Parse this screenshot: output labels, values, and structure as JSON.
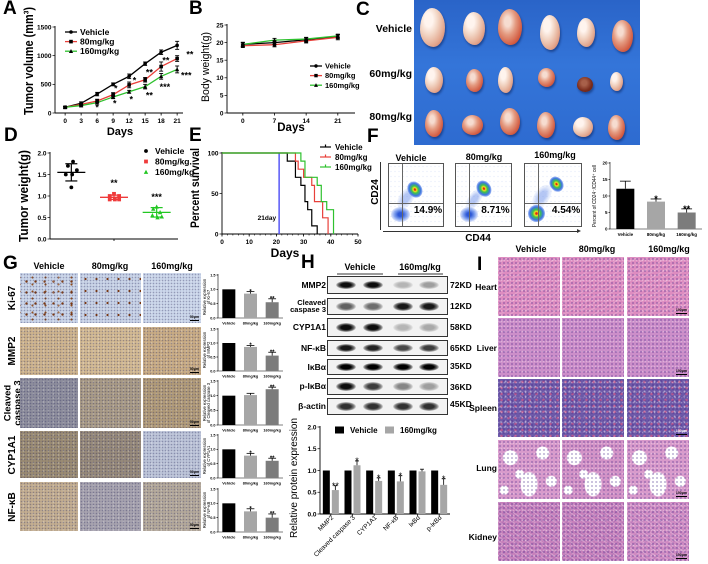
{
  "panel_labels": {
    "A": "A",
    "B": "B",
    "C": "C",
    "D": "D",
    "E": "E",
    "F": "F",
    "G": "G",
    "H": "H",
    "I": "I"
  },
  "colors": {
    "vehicle": "#000000",
    "dose_80": "#e8403a",
    "dose_160": "#2fc12f",
    "bar_80": "#a6a6a6",
    "bar_160": "#7c7c7c",
    "cutoff_line": "#4b4bf5",
    "photo_background": "#2f6fd6"
  },
  "panel_c": {
    "row_labels": [
      "Vehicle",
      "60mg/kg",
      "80mg/kg"
    ]
  },
  "panel_f": {
    "plots": [
      {
        "header": "Vehicle",
        "percent": "14.9%"
      },
      {
        "header": "80mg/kg",
        "percent": "8.71%"
      },
      {
        "header": "160mg/kg",
        "percent": "4.54%"
      }
    ],
    "y_axis": "CD24",
    "x_axis": "CD44"
  },
  "panel_g": {
    "columns": [
      "Vehicle",
      "80mg/kg",
      "160mg/kg"
    ],
    "rows": [
      "Ki-67",
      "MMP2",
      "Cleaved\ncaspase 3",
      "CYP1A1",
      "NF-κB"
    ],
    "scale_bar": "50μm"
  },
  "panel_h": {
    "columns": [
      "Vehicle",
      "160mg/kg"
    ],
    "blots": [
      {
        "label": "MMP2",
        "size": "72KD",
        "bands": [
          0.95,
          0.95,
          0.25,
          0.35
        ]
      },
      {
        "label": "Cleaved\ncaspase 3",
        "size": "12KD",
        "bands": [
          0.6,
          0.55,
          0.9,
          0.9
        ]
      },
      {
        "label": "CYP1A1",
        "size": "58KD",
        "bands": [
          0.95,
          0.95,
          0.25,
          0.3
        ]
      },
      {
        "label": "NF-κB",
        "size": "65KD",
        "bands": [
          0.9,
          0.85,
          0.7,
          0.75
        ]
      },
      {
        "label": "IκBα",
        "size": "35KD",
        "bands": [
          1.0,
          1.0,
          1.0,
          1.0
        ]
      },
      {
        "label": "p-IκBα",
        "size": "36KD",
        "bands": [
          0.95,
          0.75,
          0.45,
          0.35
        ]
      },
      {
        "label": "β-actin",
        "size": "45KD",
        "bands": [
          0.8,
          0.8,
          0.8,
          0.8
        ]
      }
    ]
  },
  "panel_i": {
    "columns": [
      "Vehicle",
      "80mg/kg",
      "160mg/kg"
    ],
    "rows": [
      "Heart",
      "Liver",
      "Spleen",
      "Lung",
      "Kidney"
    ],
    "scale_bar": "100μm"
  },
  "chart_data": [
    {
      "id": "A",
      "type": "line",
      "title": "",
      "xlabel": "Days",
      "ylabel": "Tumor volume (mm³)",
      "x": [
        0,
        3,
        6,
        9,
        12,
        15,
        18,
        21
      ],
      "xticks": [
        0,
        3,
        6,
        9,
        12,
        15,
        18,
        21
      ],
      "xlim": [
        -1.9,
        22.1
      ],
      "ylim": [
        0,
        1500
      ],
      "yticks": [
        0,
        500,
        1000,
        1500
      ],
      "ytick_labels": [
        "0",
        "500",
        "1000",
        "1500"
      ],
      "grid": false,
      "legend_position": "upper left",
      "series": [
        {
          "name": "Vehicle",
          "color": "#000000",
          "marker": "circle",
          "values": [
            100,
            170,
            330,
            500,
            640,
            860,
            1060,
            1180
          ],
          "errors": [
            15,
            25,
            30,
            25,
            40,
            30,
            40,
            70
          ]
        },
        {
          "name": "80mg/kg",
          "color": "#e8403a",
          "marker": "square",
          "values": [
            100,
            150,
            210,
            320,
            490,
            580,
            810,
            950
          ],
          "errors": [
            15,
            20,
            30,
            35,
            50,
            40,
            80,
            50
          ]
        },
        {
          "name": "160mg/kg",
          "color": "#2fc12f",
          "marker": "triangle",
          "values": [
            100,
            130,
            180,
            280,
            370,
            460,
            640,
            760
          ],
          "errors": [
            15,
            20,
            25,
            30,
            25,
            40,
            50,
            60
          ]
        }
      ],
      "annotations": [
        {
          "x": 6,
          "y": 95,
          "text": "*"
        },
        {
          "x": 9.5,
          "y": 430,
          "text": "*"
        },
        {
          "x": 9.3,
          "y": 165,
          "text": "*"
        },
        {
          "x": 13,
          "y": 565,
          "text": "*"
        },
        {
          "x": 12.4,
          "y": 235,
          "text": "*"
        },
        {
          "x": 15.8,
          "y": 710,
          "text": "**"
        },
        {
          "x": 15.8,
          "y": 305,
          "text": "**"
        },
        {
          "x": 18.9,
          "y": 915,
          "text": "**"
        },
        {
          "x": 18.7,
          "y": 450,
          "text": "***"
        },
        {
          "x": 23.4,
          "y": 1020,
          "text": "**"
        },
        {
          "x": 22.7,
          "y": 655,
          "text": "***"
        }
      ]
    },
    {
      "id": "B",
      "type": "line",
      "title": "",
      "xlabel": "Days",
      "ylabel": "Body weight(g)",
      "x": [
        0,
        7,
        14,
        21
      ],
      "xticks": [
        0,
        7,
        14,
        21
      ],
      "xlim": [
        -3.5,
        24.8
      ],
      "ylim": [
        0,
        25
      ],
      "yticks": [
        0,
        5,
        10,
        15,
        20,
        25
      ],
      "grid": false,
      "legend_position": "center right",
      "series": [
        {
          "name": "Vehicle",
          "color": "#000000",
          "marker": "circle",
          "values": [
            19.5,
            20.0,
            20.8,
            21.7
          ],
          "errors": [
            0.6,
            0.5,
            0.6,
            0.6
          ]
        },
        {
          "name": "80mg/kg",
          "color": "#e8403a",
          "marker": "square",
          "values": [
            19.1,
            19.4,
            20.5,
            21.5
          ],
          "errors": [
            0.5,
            0.6,
            0.6,
            0.7
          ]
        },
        {
          "name": "160mg/kg",
          "color": "#2fc12f",
          "marker": "triangle",
          "values": [
            19.5,
            20.7,
            21.0,
            21.9
          ],
          "errors": [
            0.5,
            0.5,
            0.5,
            0.5
          ]
        }
      ]
    },
    {
      "id": "D",
      "type": "scatter",
      "title": "",
      "xlabel": "",
      "ylabel": "Tumor weight(g)",
      "categories": [
        "Vehicle",
        "80mg/kg",
        "160mg/kg"
      ],
      "ylim": [
        0,
        2
      ],
      "yticks": [
        0,
        0.5,
        1,
        1.5,
        2
      ],
      "ytick_labels": [
        "0.0",
        "0.5",
        "1.0",
        "1.5",
        "2.0"
      ],
      "legend_position": "upper right",
      "groups": [
        {
          "name": "Vehicle",
          "color": "#000000",
          "marker": "circle",
          "values": [
            1.8,
            1.7,
            1.6,
            1.5,
            1.5,
            1.2
          ],
          "jitter": [
            0.04,
            -0.08,
            0.13,
            -0.13,
            0.02,
            0.0
          ],
          "mean": 1.55,
          "sd": 0.2
        },
        {
          "name": "80mg/kg",
          "color": "#ef3b3b",
          "marker": "square",
          "values": [
            1.05,
            1.0,
            1.0,
            0.92,
            0.92,
            0.92
          ],
          "jitter": [
            0.0,
            -0.1,
            0.12,
            -0.1,
            0.02,
            0.12
          ],
          "mean": 0.97,
          "sd": 0.05
        },
        {
          "name": "160mg/kg",
          "color": "#22c722",
          "marker": "triangle",
          "values": [
            0.75,
            0.7,
            0.62,
            0.55,
            0.5,
            0.52
          ],
          "jitter": [
            0.0,
            -0.08,
            0.08,
            -0.1,
            0.02,
            0.12
          ],
          "mean": 0.62,
          "sd": 0.11
        }
      ],
      "annotations": [
        {
          "index": 1,
          "y": 1.3,
          "text": "**"
        },
        {
          "index": 2,
          "y": 0.98,
          "text": "***"
        }
      ]
    },
    {
      "id": "E",
      "type": "step",
      "title": "",
      "xlabel": "Days",
      "ylabel": "Percent survival",
      "xlim": [
        0,
        50
      ],
      "xticks": [
        0,
        10,
        20,
        30,
        40,
        50
      ],
      "xminor": 2,
      "ylim": [
        0,
        100
      ],
      "yticks": [
        0,
        50,
        100
      ],
      "legend_position": "upper right",
      "series": [
        {
          "name": "Vehicle",
          "color": "#000000",
          "steps": [
            [
              0,
              100
            ],
            [
              24,
              100
            ],
            [
              24,
              90
            ],
            [
              27,
              90
            ],
            [
              27,
              70
            ],
            [
              29,
              70
            ],
            [
              29,
              60
            ],
            [
              30.5,
              60
            ],
            [
              30.5,
              40
            ],
            [
              31.5,
              40
            ],
            [
              31.5,
              30
            ],
            [
              33,
              30
            ],
            [
              33,
              10
            ],
            [
              35,
              10
            ],
            [
              35,
              0
            ]
          ]
        },
        {
          "name": "80mg/kg",
          "color": "#e8403a",
          "steps": [
            [
              0,
              100
            ],
            [
              27,
              100
            ],
            [
              27,
              90
            ],
            [
              28,
              90
            ],
            [
              28,
              80
            ],
            [
              30,
              80
            ],
            [
              30,
              70
            ],
            [
              33,
              70
            ],
            [
              33,
              60
            ],
            [
              34,
              60
            ],
            [
              34,
              40
            ],
            [
              37,
              40
            ],
            [
              37,
              20
            ],
            [
              39,
              20
            ],
            [
              39,
              0
            ]
          ]
        },
        {
          "name": "160mg/kg",
          "color": "#2fc12f",
          "steps": [
            [
              0,
              100
            ],
            [
              29,
              100
            ],
            [
              29,
              90
            ],
            [
              30.5,
              90
            ],
            [
              30.5,
              70
            ],
            [
              35,
              70
            ],
            [
              35,
              60
            ],
            [
              36.5,
              60
            ],
            [
              36.5,
              40
            ],
            [
              38.5,
              40
            ],
            [
              38.5,
              30
            ],
            [
              41,
              30
            ],
            [
              41,
              0
            ]
          ]
        }
      ],
      "vlines": [
        {
          "x": 21,
          "color": "#4b4bf5",
          "label": "21day"
        }
      ]
    },
    {
      "id": "F",
      "type": "bar",
      "title": "",
      "xlabel": "",
      "ylabel": "Percent of CD24⁻/CD44⁺ cell",
      "categories": [
        "Vehicle",
        "80mg/kg",
        "160mg/kg"
      ],
      "values": [
        12.2,
        8.3,
        5.0
      ],
      "errors": [
        2.3,
        0.8,
        1.1
      ],
      "colors": [
        "#000000",
        "#a6a6a6",
        "#7c7c7c"
      ],
      "ylim": [
        0,
        20
      ],
      "yticks": [
        0,
        5,
        10,
        15,
        20
      ],
      "annotations": [
        "",
        "*",
        "**"
      ]
    },
    {
      "id": "G-Ki-67",
      "type": "bar",
      "ylabel": "Relative expression\nof Ki-67",
      "categories": [
        "Vehicle",
        "80mg/kg",
        "160mg/kg"
      ],
      "values": [
        1.0,
        0.85,
        0.55
      ],
      "errors": [
        0,
        0.07,
        0.12
      ],
      "colors": [
        "#000000",
        "#a6a6a6",
        "#7c7c7c"
      ],
      "ylim": [
        0,
        1.5
      ],
      "yticks": [
        0,
        0.5,
        1,
        1.5
      ],
      "ytick_labels": [
        "0.0",
        "0.5",
        "1.0",
        "1.5"
      ],
      "annotations": [
        "",
        "*",
        "**"
      ]
    },
    {
      "id": "G-MMP2",
      "type": "bar",
      "ylabel": "Relative expression\nof MMP2",
      "categories": [
        "Vehicle",
        "80mg/kg",
        "160mg/kg"
      ],
      "values": [
        1.0,
        0.86,
        0.55
      ],
      "errors": [
        0,
        0.05,
        0.12
      ],
      "colors": [
        "#000000",
        "#a6a6a6",
        "#7c7c7c"
      ],
      "ylim": [
        0,
        1.5
      ],
      "yticks": [
        0,
        0.5,
        1,
        1.5
      ],
      "ytick_labels": [
        "0.0",
        "0.5",
        "1.0",
        "1.5"
      ],
      "annotations": [
        "",
        "*",
        "**"
      ]
    },
    {
      "id": "G-Cleaved-caspase-3",
      "type": "bar",
      "ylabel": "Relative expression\nof Cleaved caspase 3",
      "categories": [
        "Vehicle",
        "80mg/kg",
        "160mg/kg"
      ],
      "values": [
        1.0,
        1.02,
        1.22
      ],
      "errors": [
        0,
        0.06,
        0.07
      ],
      "colors": [
        "#000000",
        "#a6a6a6",
        "#7c7c7c"
      ],
      "ylim": [
        0,
        1.5
      ],
      "yticks": [
        0,
        0.5,
        1,
        1.5
      ],
      "ytick_labels": [
        "0.0",
        "0.5",
        "1.0",
        "1.5"
      ],
      "annotations": [
        "",
        "",
        "**"
      ]
    },
    {
      "id": "G-CYP1A1",
      "type": "bar",
      "ylabel": "Relative expression\nof CYP1A1",
      "categories": [
        "Vehicle",
        "80mg/kg",
        "160mg/kg"
      ],
      "values": [
        1.0,
        0.78,
        0.6
      ],
      "errors": [
        0,
        0.08,
        0.09
      ],
      "colors": [
        "#000000",
        "#a6a6a6",
        "#7c7c7c"
      ],
      "ylim": [
        0,
        1.5
      ],
      "yticks": [
        0,
        0.5,
        1,
        1.5
      ],
      "ytick_labels": [
        "0.0",
        "0.5",
        "1.0",
        "1.5"
      ],
      "annotations": [
        "",
        "*",
        "**"
      ]
    },
    {
      "id": "G-NF-kB",
      "type": "bar",
      "ylabel": "Relative expression\nof NF-κB",
      "categories": [
        "Vehicle",
        "80mg/kg",
        "160mg/kg"
      ],
      "values": [
        1.0,
        0.72,
        0.5
      ],
      "errors": [
        0,
        0.09,
        0.13
      ],
      "colors": [
        "#000000",
        "#a6a6a6",
        "#7c7c7c"
      ],
      "ylim": [
        0,
        1.5
      ],
      "yticks": [
        0,
        0.5,
        1,
        1.5
      ],
      "ytick_labels": [
        "0.0",
        "0.5",
        "1.0",
        "1.5"
      ],
      "annotations": [
        "",
        "*",
        "**"
      ]
    },
    {
      "id": "H",
      "type": "grouped_bar",
      "title": "",
      "xlabel": "",
      "ylabel": "Relative protein expression",
      "categories": [
        "MMP2",
        "Cleaved caspase 3",
        "CYP1A1",
        "NF-κB",
        "IκBα",
        "p-IκBα"
      ],
      "ylim": [
        0,
        2
      ],
      "yticks": [
        0,
        0.5,
        1,
        1.5,
        2
      ],
      "ytick_labels": [
        "0.0",
        "0.5",
        "1.0",
        "1.5",
        "2.0"
      ],
      "legend_position": "top",
      "series": [
        {
          "name": "Vehicle",
          "color": "#000000",
          "values": [
            1,
            1,
            1,
            1,
            1,
            1
          ],
          "errors": [
            0,
            0,
            0,
            0,
            0,
            0
          ],
          "annotations": [
            "",
            "",
            "",
            "",
            "",
            ""
          ]
        },
        {
          "name": "160mg/kg",
          "color": "#a6a6a6",
          "values": [
            0.55,
            1.12,
            0.76,
            0.75,
            0.98,
            0.67
          ],
          "errors": [
            0.1,
            0.1,
            0.07,
            0.13,
            0.05,
            0.14
          ],
          "annotations": [
            "**",
            "*",
            "*",
            "*",
            "",
            "*"
          ]
        }
      ]
    }
  ]
}
